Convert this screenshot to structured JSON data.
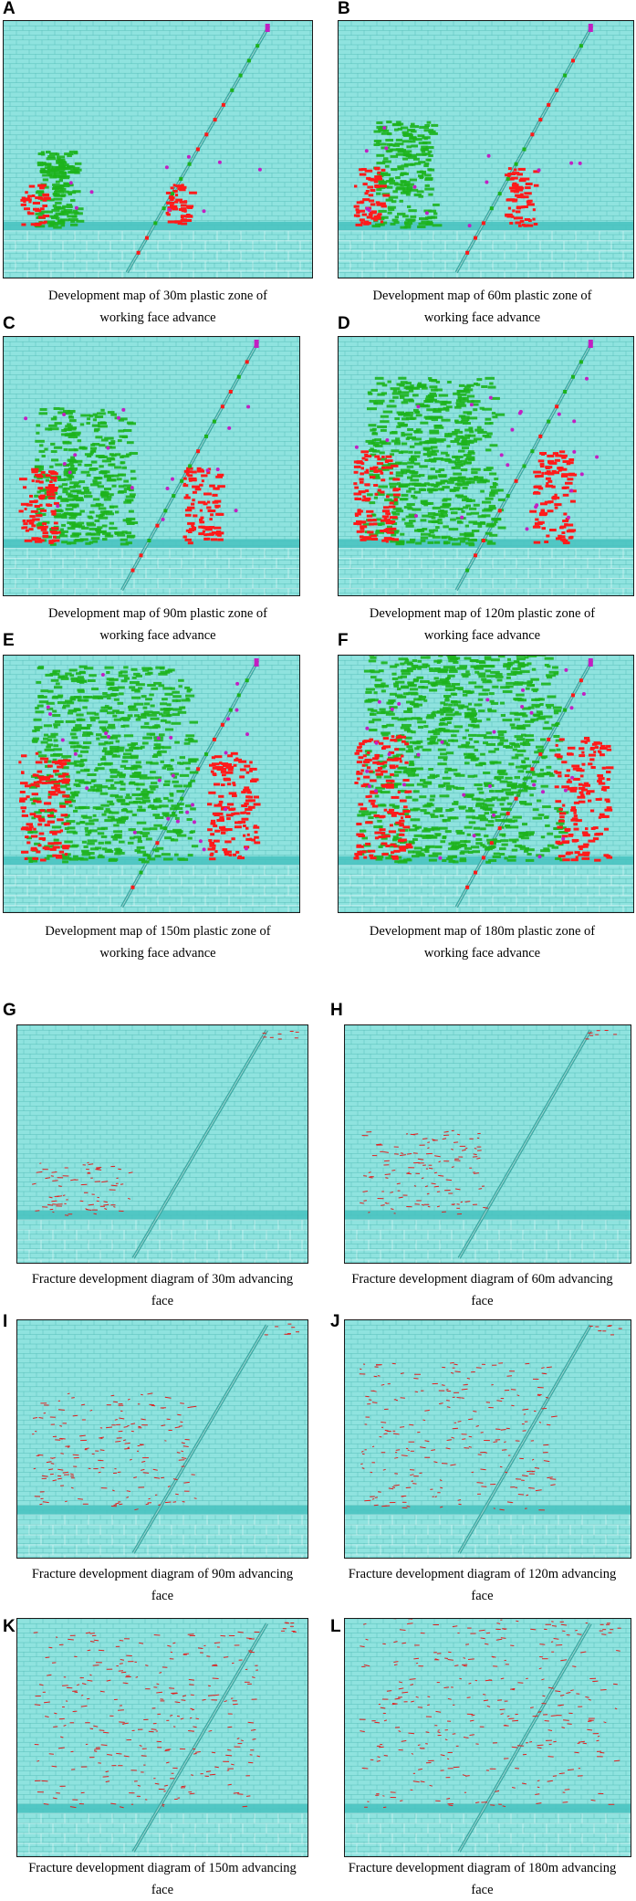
{
  "panels": [
    {
      "letter": "A",
      "caption_line1": "Development map of 30m plastic zone of",
      "caption_line2": "working face advance",
      "kind": "plastic",
      "advance_m": 30
    },
    {
      "letter": "B",
      "caption_line1": "Development map of 60m plastic zone of",
      "caption_line2": "working face advance",
      "kind": "plastic",
      "advance_m": 60
    },
    {
      "letter": "C",
      "caption_line1": "Development map of 90m plastic zone of",
      "caption_line2": "working face advance",
      "kind": "plastic",
      "advance_m": 90
    },
    {
      "letter": "D",
      "caption_line1": "Development map of 120m plastic zone of",
      "caption_line2": "working face advance",
      "kind": "plastic",
      "advance_m": 120
    },
    {
      "letter": "E",
      "caption_line1": "Development map of 150m plastic zone of",
      "caption_line2": "working face advance",
      "kind": "plastic",
      "advance_m": 150
    },
    {
      "letter": "F",
      "caption_line1": "Development map of 180m plastic zone of",
      "caption_line2": "working face advance",
      "kind": "plastic",
      "advance_m": 180
    },
    {
      "letter": "G",
      "caption_line1": "Fracture development diagram of 30m advancing",
      "caption_line2": "face",
      "kind": "fracture",
      "advance_m": 30
    },
    {
      "letter": "H",
      "caption_line1": "Fracture development diagram of 60m advancing",
      "caption_line2": "face",
      "kind": "fracture",
      "advance_m": 60
    },
    {
      "letter": "I",
      "caption_line1": "Fracture development diagram of 90m advancing",
      "caption_line2": "face",
      "kind": "fracture",
      "advance_m": 90
    },
    {
      "letter": "J",
      "caption_line1": "Fracture development diagram of 120m advancing",
      "caption_line2": "face",
      "kind": "fracture",
      "advance_m": 120
    },
    {
      "letter": "K",
      "caption_line1": "Fracture development diagram of 150m advancing",
      "caption_line2": "face",
      "kind": "fracture",
      "advance_m": 150
    },
    {
      "letter": "L",
      "caption_line1": "Fracture development diagram of 180m advancing",
      "caption_line2": "face",
      "kind": "fracture",
      "advance_m": 180
    }
  ],
  "colors": {
    "rock_mass": "#8fe3df",
    "block_lines": "#4fb8b3",
    "coal_seam": "#47c2c0",
    "plastic_shear": "#1db31d",
    "plastic_tension": "#ff1a1a",
    "plastic_combined": "#c21fc2",
    "fracture": "#e02020",
    "fault": "#3aa8a2"
  }
}
